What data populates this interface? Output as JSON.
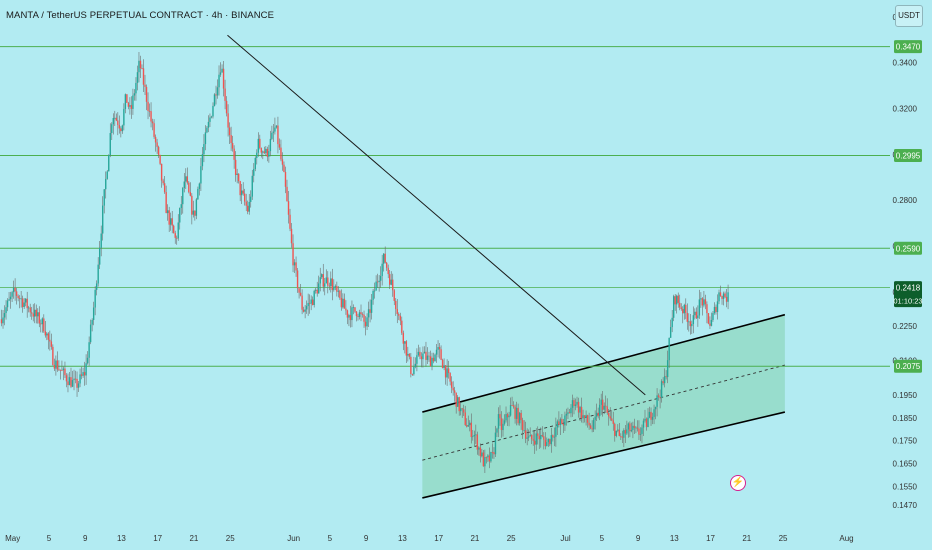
{
  "header": {
    "title": "MANTA / TetherUS PERPETUAL CONTRACT · 4h · BINANCE",
    "currency_button": "USDT"
  },
  "colors": {
    "background": "#b2ebf2",
    "level_line": "#4caf50",
    "level_label_bg": "#4caf50",
    "up_candle": "#26a69a",
    "down_candle": "#ef5350",
    "trendline": "#1a1a1a",
    "channel_fill": "#8fd8c0",
    "channel_border": "#000000"
  },
  "chart_data": {
    "type": "candlestick",
    "symbol": "MANTA / TetherUS PERPETUAL CONTRACT",
    "interval": "4h",
    "exchange": "BINANCE",
    "ylim": [
      0.143,
      0.363
    ],
    "y_ticks": [
      "0.3600",
      "0.3400",
      "0.3200",
      "0.3000",
      "0.2800",
      "0.2600",
      "0.2400",
      "0.2250",
      "0.2100",
      "0.1950",
      "0.1850",
      "0.1750",
      "0.1650",
      "0.1550",
      "0.1470"
    ],
    "x_ticks": [
      {
        "label": "May",
        "day": 0
      },
      {
        "label": "5",
        "day": 4
      },
      {
        "label": "9",
        "day": 8
      },
      {
        "label": "13",
        "day": 12
      },
      {
        "label": "17",
        "day": 16
      },
      {
        "label": "21",
        "day": 20
      },
      {
        "label": "25",
        "day": 24
      },
      {
        "label": "Jun",
        "day": 31
      },
      {
        "label": "5",
        "day": 35
      },
      {
        "label": "9",
        "day": 39
      },
      {
        "label": "13",
        "day": 43
      },
      {
        "label": "17",
        "day": 47
      },
      {
        "label": "21",
        "day": 51
      },
      {
        "label": "25",
        "day": 55
      },
      {
        "label": "Jul",
        "day": 61
      },
      {
        "label": "5",
        "day": 65
      },
      {
        "label": "9",
        "day": 69
      },
      {
        "label": "13",
        "day": 73
      },
      {
        "label": "17",
        "day": 77
      },
      {
        "label": "21",
        "day": 81
      },
      {
        "label": "25",
        "day": 85
      },
      {
        "label": "Aug",
        "day": 92
      }
    ],
    "x_range_days": [
      -1.4,
      96.8
    ],
    "levels": [
      {
        "value": 0.347,
        "label": "0.3470"
      },
      {
        "value": 0.2995,
        "label": "0.2995"
      },
      {
        "value": 0.259,
        "label": "0.2590"
      },
      {
        "value": 0.2418,
        "label": "0.2418",
        "current": true,
        "countdown": "01:10:23"
      },
      {
        "value": 0.2075,
        "label": "0.2075"
      }
    ],
    "price_path": [
      [
        -1.4,
        0.228
      ],
      [
        0.2,
        0.24
      ],
      [
        2,
        0.232
      ],
      [
        3.5,
        0.225
      ],
      [
        4.5,
        0.21
      ],
      [
        5.8,
        0.203
      ],
      [
        7,
        0.199
      ],
      [
        8,
        0.205
      ],
      [
        9,
        0.235
      ],
      [
        10,
        0.278
      ],
      [
        11,
        0.318
      ],
      [
        12,
        0.312
      ],
      [
        12.5,
        0.325
      ],
      [
        13,
        0.318
      ],
      [
        14,
        0.34
      ],
      [
        15,
        0.32
      ],
      [
        16,
        0.3
      ],
      [
        17,
        0.275
      ],
      [
        18,
        0.262
      ],
      [
        19,
        0.29
      ],
      [
        20,
        0.272
      ],
      [
        21,
        0.302
      ],
      [
        22,
        0.32
      ],
      [
        23,
        0.34
      ],
      [
        24,
        0.305
      ],
      [
        25,
        0.285
      ],
      [
        26,
        0.275
      ],
      [
        27,
        0.305
      ],
      [
        28,
        0.3
      ],
      [
        29,
        0.312
      ],
      [
        30,
        0.288
      ],
      [
        31,
        0.252
      ],
      [
        32,
        0.232
      ],
      [
        33,
        0.236
      ],
      [
        34,
        0.245
      ],
      [
        35,
        0.245
      ],
      [
        36,
        0.237
      ],
      [
        37,
        0.23
      ],
      [
        38,
        0.232
      ],
      [
        39,
        0.225
      ],
      [
        40,
        0.242
      ],
      [
        41,
        0.255
      ],
      [
        42,
        0.24
      ],
      [
        43,
        0.222
      ],
      [
        44,
        0.205
      ],
      [
        45,
        0.213
      ],
      [
        46,
        0.21
      ],
      [
        47,
        0.214
      ],
      [
        48,
        0.203
      ],
      [
        49,
        0.192
      ],
      [
        50,
        0.183
      ],
      [
        51,
        0.177
      ],
      [
        52,
        0.165
      ],
      [
        53,
        0.168
      ],
      [
        53.5,
        0.185
      ],
      [
        54,
        0.18
      ],
      [
        55,
        0.19
      ],
      [
        56,
        0.184
      ],
      [
        57,
        0.175
      ],
      [
        58,
        0.177
      ],
      [
        59,
        0.174
      ],
      [
        60,
        0.181
      ],
      [
        61,
        0.184
      ],
      [
        62,
        0.193
      ],
      [
        63,
        0.185
      ],
      [
        64,
        0.18
      ],
      [
        65,
        0.192
      ],
      [
        66,
        0.183
      ],
      [
        67,
        0.176
      ],
      [
        68,
        0.18
      ],
      [
        69,
        0.178
      ],
      [
        70,
        0.183
      ],
      [
        71,
        0.192
      ],
      [
        72,
        0.202
      ],
      [
        73,
        0.238
      ],
      [
        74,
        0.232
      ],
      [
        75,
        0.226
      ],
      [
        76,
        0.237
      ],
      [
        77,
        0.225
      ],
      [
        78,
        0.24
      ],
      [
        79,
        0.237
      ]
    ],
    "trendline": {
      "from": [
        23.7,
        0.352
      ],
      "to": [
        69.8,
        0.195
      ]
    },
    "channel": {
      "upper": {
        "from": [
          45.2,
          0.1875
        ],
        "to": [
          85.2,
          0.23
        ]
      },
      "mid": {
        "from": [
          45.2,
          0.1665
        ],
        "to": [
          85.2,
          0.208
        ]
      },
      "lower": {
        "from": [
          45.2,
          0.15
        ],
        "to": [
          85.2,
          0.1875
        ]
      }
    },
    "legend": "none",
    "grid": false
  }
}
